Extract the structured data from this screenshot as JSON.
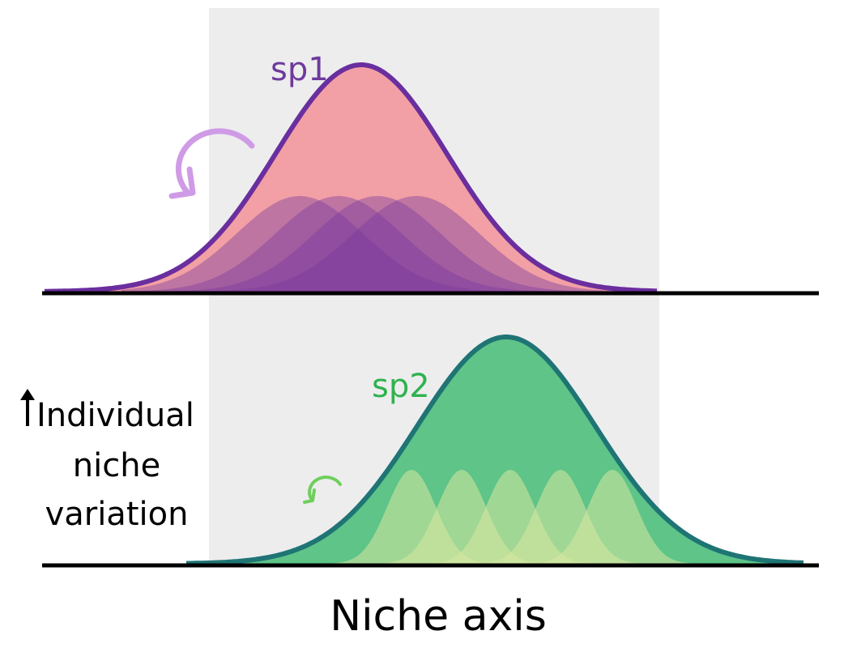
{
  "panels": [
    {
      "species_label": "sp1",
      "label_color": "#6e3a9c",
      "outline_color": "#6a2e9e",
      "fill_color": "#f2a0a5",
      "individual_fill_color": "#7a3a9e",
      "arrow_color": "#cf9be6",
      "arrow_icon": "clockwise-arrow-icon"
    },
    {
      "species_label": "sp2",
      "label_color": "#2fb24e",
      "outline_color": "#1f7474",
      "fill_color": "#5ec488",
      "individual_fill_color": "#d9e8a0",
      "arrow_color": "#6fcf5c",
      "arrow_icon": "clockwise-arrow-icon"
    }
  ],
  "side_label": {
    "arrow_icon": "up-arrow-icon",
    "lines": [
      "Individual",
      "niche",
      "variation"
    ]
  },
  "axis_label": "Niche axis",
  "colors": {
    "background_band": "#ededee",
    "baseline": "#000000"
  }
}
